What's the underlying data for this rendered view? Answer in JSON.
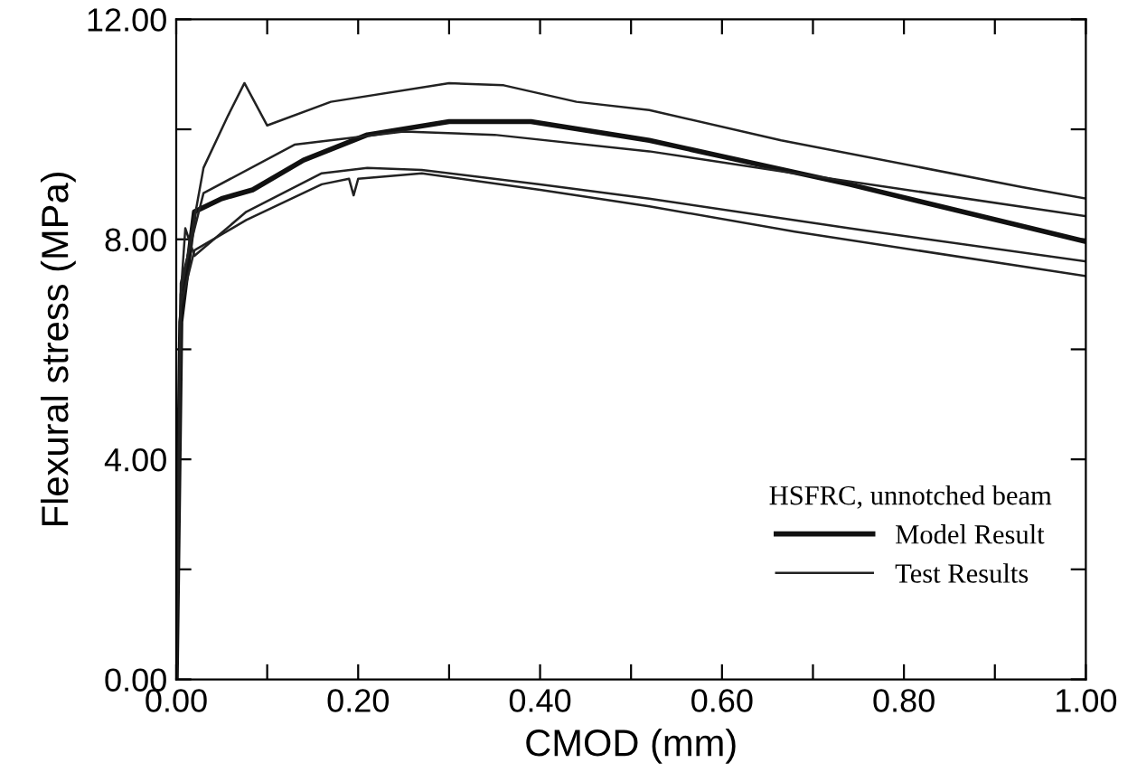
{
  "chart_data": {
    "type": "line",
    "xlabel": "CMOD (mm)",
    "ylabel": "Flexural stress (MPa)",
    "legend_title": "HSFRC, unnotched beam",
    "legend": "bottom right",
    "grid": false,
    "marker": "none",
    "line_style": "solid",
    "xlim": [
      0,
      1
    ],
    "ylim": [
      0,
      12
    ],
    "xticks": [
      {
        "value": 0,
        "label": "0.00"
      },
      {
        "value": 0.1,
        "label": null
      },
      {
        "value": 0.2,
        "label": "0.20"
      },
      {
        "value": 0.3,
        "label": null
      },
      {
        "value": 0.4,
        "label": "0.40"
      },
      {
        "value": 0.5,
        "label": null
      },
      {
        "value": 0.6,
        "label": "0.60"
      },
      {
        "value": 0.7,
        "label": null
      },
      {
        "value": 0.8,
        "label": "0.80"
      },
      {
        "value": 0.9,
        "label": null
      },
      {
        "value": 1,
        "label": "1.00"
      }
    ],
    "yticks": [
      {
        "value": 0,
        "label": "0.00"
      },
      {
        "value": 2,
        "label": null
      },
      {
        "value": 4,
        "label": "4.00"
      },
      {
        "value": 6,
        "label": null
      },
      {
        "value": 8,
        "label": "8.00"
      },
      {
        "value": 10,
        "label": null
      },
      {
        "value": 12,
        "label": "12.00"
      }
    ],
    "series": [
      {
        "name": "Model Result",
        "color": "#111111",
        "x": [
          0,
          0.005,
          0.02,
          0.05,
          0.084,
          0.14,
          0.21,
          0.3,
          0.39,
          0.52,
          0.74,
          1.0
        ],
        "values": [
          0,
          6.5,
          8.5,
          8.74,
          8.9,
          9.44,
          9.9,
          10.14,
          10.14,
          9.8,
          9.0,
          7.96
        ]
      },
      {
        "name": "Test Results",
        "color": "#222222",
        "x": [
          0,
          0.005,
          0.03,
          0.057,
          0.075,
          0.1,
          0.17,
          0.3,
          0.36,
          0.44,
          0.52,
          0.665,
          0.93,
          1.0
        ],
        "values": [
          0,
          7.0,
          9.3,
          10.25,
          10.84,
          10.07,
          10.5,
          10.84,
          10.8,
          10.5,
          10.35,
          9.8,
          8.95,
          8.74
        ]
      },
      {
        "color": "#222222",
        "x": [
          0,
          0.005,
          0.03,
          0.13,
          0.25,
          0.35,
          0.52,
          0.68,
          1.0
        ],
        "values": [
          0,
          7.2,
          8.84,
          9.72,
          9.96,
          9.9,
          9.6,
          9.2,
          8.42
        ]
      },
      {
        "color": "#222222",
        "x": [
          0,
          0.005,
          0.01,
          0.02,
          0.077,
          0.16,
          0.21,
          0.27,
          0.4,
          0.52,
          0.74,
          1.0
        ],
        "values": [
          0,
          7.0,
          8.2,
          7.7,
          8.5,
          9.2,
          9.3,
          9.26,
          9.0,
          8.74,
          8.2,
          7.6
        ]
      },
      {
        "color": "#222222",
        "x": [
          0,
          0.005,
          0.02,
          0.077,
          0.16,
          0.19,
          0.195,
          0.2,
          0.27,
          0.4,
          0.52,
          0.68,
          1.0
        ],
        "values": [
          0,
          6.8,
          7.8,
          8.35,
          9.0,
          9.1,
          8.8,
          9.1,
          9.2,
          8.9,
          8.6,
          8.14,
          7.33
        ]
      }
    ]
  }
}
